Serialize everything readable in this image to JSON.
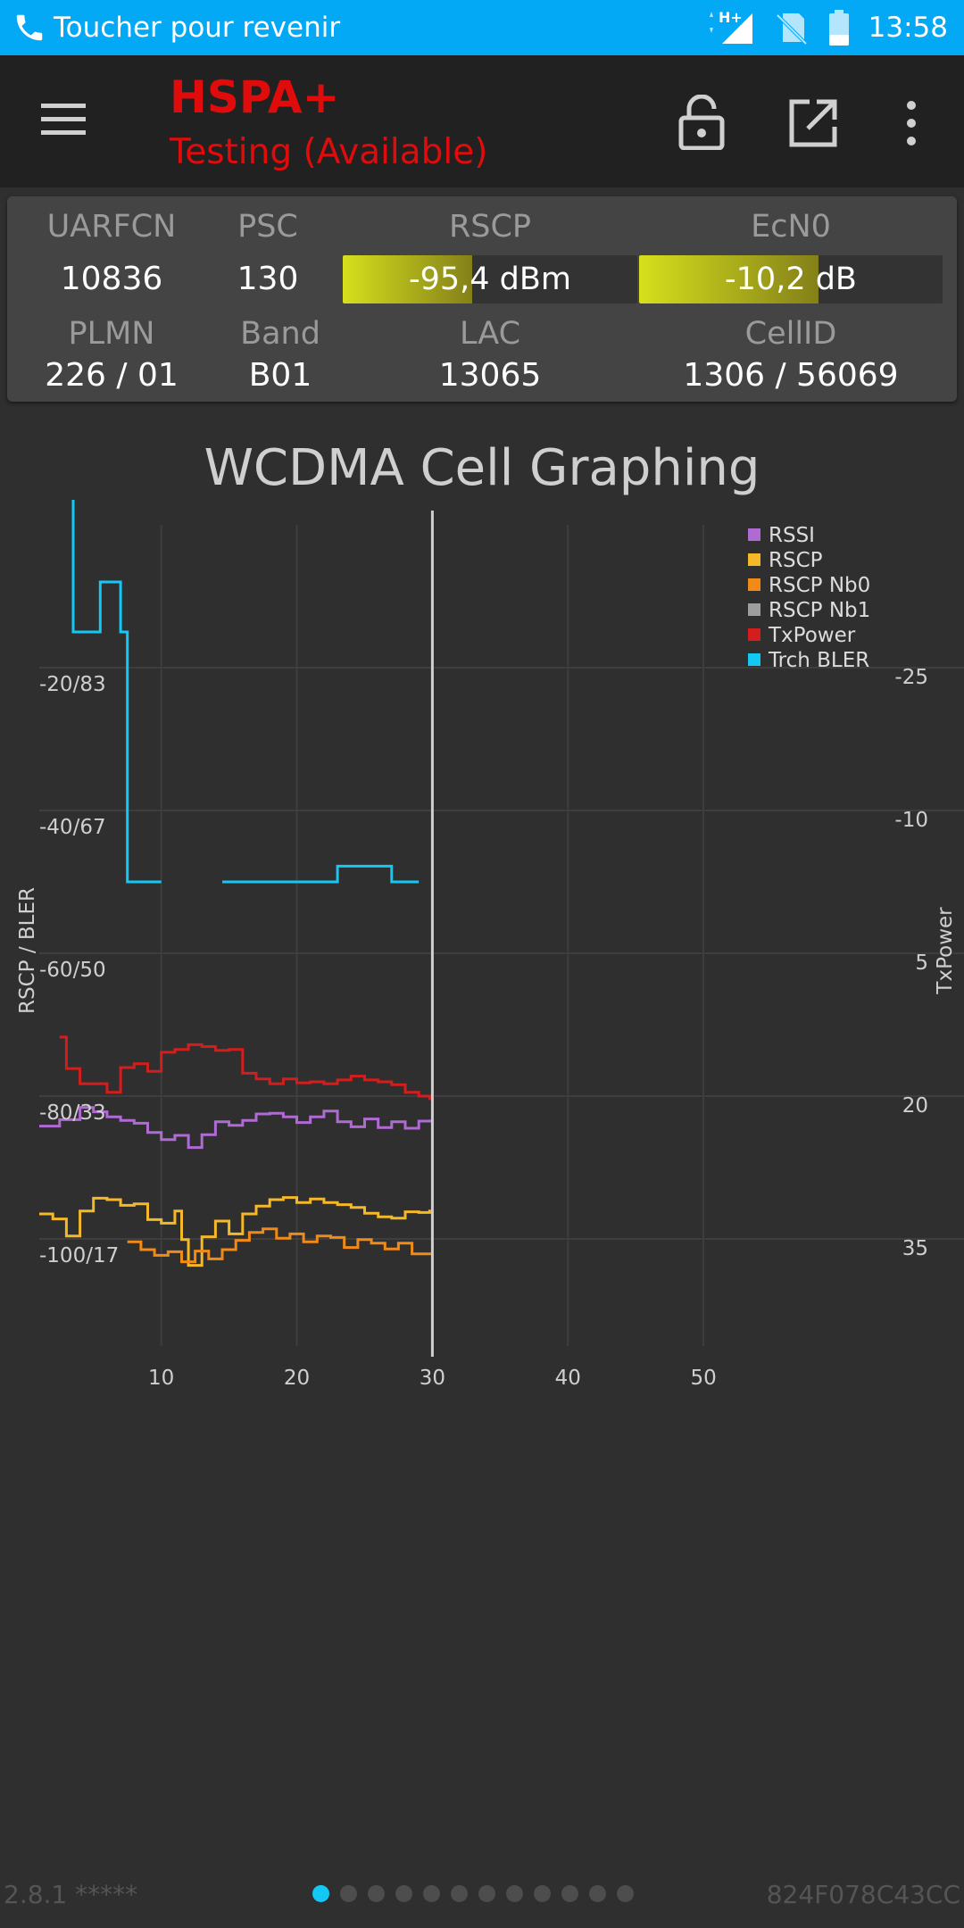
{
  "status_bar": {
    "back_text": "Toucher pour revenir",
    "network_indicator": "H+",
    "time": "13:58",
    "icons": [
      "phone-icon",
      "signal-icon",
      "no-sim-icon",
      "battery-icon"
    ]
  },
  "app_bar": {
    "technology": "HSPA+",
    "state": "Testing (Available)",
    "icons": [
      "menu-icon",
      "lock-open-icon",
      "open-external-icon",
      "more-vert-icon"
    ],
    "accent_color": "#e00b0b"
  },
  "cell_info": {
    "uarfcn_label": "UARFCN",
    "uarfcn_value": "10836",
    "psc_label": "PSC",
    "psc_value": "130",
    "rscp_label": "RSCP",
    "rscp_value": "-95,4 dBm",
    "rscp_level": 0.44,
    "ecn0_label": "EcN0",
    "ecn0_value": "-10,2 dB",
    "ecn0_level": 0.59,
    "plmn_label": "PLMN",
    "plmn_value": "226 / 01",
    "band_label": "Band",
    "band_value": "B01",
    "lac_label": "LAC",
    "lac_value": "13065",
    "cellid_label": "CellID",
    "cellid_value": "1306 / 56069"
  },
  "chart_data": {
    "type": "line",
    "title": "WCDMA Cell Graphing",
    "ylabel": "RSCP / BLER",
    "y2label": "TxPower",
    "x_ticks": [
      "10",
      "20",
      "30",
      "40",
      "50"
    ],
    "xlim": [
      1,
      60
    ],
    "y_ticks": [
      "-20/83",
      "-40/67",
      "-60/50",
      "-80/33",
      "-100/17"
    ],
    "y_range": [
      -120,
      0
    ],
    "y2_ticks": [
      "-25",
      "-10",
      "5",
      "20",
      "35"
    ],
    "cursor_x": 30,
    "grid": true,
    "legend_position": "top-right",
    "series": [
      {
        "name": "RSSI",
        "color": "#b06ad4",
        "step": true,
        "points": [
          [
            1,
            -84.2
          ],
          [
            2.5,
            -83.3
          ],
          [
            4,
            -81.6
          ],
          [
            5,
            -82.2
          ],
          [
            6,
            -82.9
          ],
          [
            7,
            -83.4
          ],
          [
            8,
            -83.8
          ],
          [
            9,
            -85.1
          ],
          [
            10,
            -86.1
          ],
          [
            11,
            -85.5
          ],
          [
            12,
            -87.2
          ],
          [
            13,
            -85.4
          ],
          [
            14,
            -83.6
          ],
          [
            15,
            -84.1
          ],
          [
            16,
            -83.4
          ],
          [
            17,
            -82.5
          ],
          [
            18,
            -82.4
          ],
          [
            19,
            -82.9
          ],
          [
            20,
            -83.7
          ],
          [
            21,
            -82.9
          ],
          [
            22,
            -82.1
          ],
          [
            23,
            -83.6
          ],
          [
            24,
            -84.3
          ],
          [
            25,
            -83.2
          ],
          [
            26,
            -84.4
          ],
          [
            27,
            -83.6
          ],
          [
            28,
            -84.5
          ],
          [
            29,
            -83.5
          ],
          [
            29.8,
            -83.3
          ]
        ]
      },
      {
        "name": "RSCP",
        "color": "#f5b829",
        "step": true,
        "points": [
          [
            1,
            -96.5
          ],
          [
            2,
            -97.2
          ],
          [
            3,
            -99.6
          ],
          [
            4,
            -96.1
          ],
          [
            5,
            -94.3
          ],
          [
            6,
            -94.5
          ],
          [
            7,
            -95.3
          ],
          [
            8,
            -95.1
          ],
          [
            9,
            -97.3
          ],
          [
            10,
            -97.8
          ],
          [
            11,
            -96.1
          ],
          [
            11.5,
            -100.1
          ],
          [
            12,
            -103.7
          ],
          [
            13,
            -99.7
          ],
          [
            14,
            -97.5
          ],
          [
            15,
            -99.3
          ],
          [
            16,
            -96.5
          ],
          [
            17,
            -95.4
          ],
          [
            18,
            -94.5
          ],
          [
            19,
            -94.2
          ],
          [
            20,
            -94.9
          ],
          [
            21,
            -94.4
          ],
          [
            22,
            -94.9
          ],
          [
            23,
            -95.2
          ],
          [
            24,
            -95.6
          ],
          [
            25,
            -96.4
          ],
          [
            26,
            -96.9
          ],
          [
            27,
            -97.1
          ],
          [
            28,
            -96.2
          ],
          [
            29,
            -96.3
          ],
          [
            29.8,
            -95.9
          ]
        ]
      },
      {
        "name": "RSCP Nb0",
        "color": "#f28a17",
        "step": true,
        "points": [
          [
            7.5,
            -100.4
          ],
          [
            8.5,
            -101.5
          ],
          [
            9.5,
            -102.3
          ],
          [
            10.5,
            -101.8
          ],
          [
            11.5,
            -103.2
          ],
          [
            12.5,
            -101.7
          ],
          [
            13.5,
            -102.8
          ],
          [
            14.5,
            -101.5
          ],
          [
            15.5,
            -100.2
          ],
          [
            16.5,
            -99.1
          ],
          [
            17.5,
            -98.6
          ],
          [
            18.5,
            -99.9
          ],
          [
            19.5,
            -99.3
          ],
          [
            20.5,
            -100.4
          ],
          [
            21.5,
            -99.6
          ],
          [
            22.5,
            -99.8
          ],
          [
            23.5,
            -101.2
          ],
          [
            24.5,
            -100.1
          ],
          [
            25.5,
            -100.6
          ],
          [
            26.5,
            -101.4
          ],
          [
            27.5,
            -100.6
          ],
          [
            28.5,
            -102.1
          ],
          [
            29.8,
            -101.9
          ]
        ]
      },
      {
        "name": "RSCP Nb1",
        "color": "#9e9e9e",
        "step": true,
        "points": []
      },
      {
        "name": "TxPower",
        "color": "#d41d1d",
        "step": true,
        "points": [
          [
            2.5,
            13.8
          ],
          [
            3,
            17.1
          ],
          [
            4,
            18.7
          ],
          [
            5,
            18.7
          ],
          [
            6,
            19.6
          ],
          [
            7,
            17.0
          ],
          [
            8,
            16.6
          ],
          [
            9,
            17.4
          ],
          [
            10,
            15.4
          ],
          [
            11,
            15.1
          ],
          [
            12,
            14.6
          ],
          [
            13,
            14.8
          ],
          [
            14,
            15.2
          ],
          [
            15,
            15.1
          ],
          [
            16,
            17.6
          ],
          [
            17,
            18.2
          ],
          [
            18,
            18.7
          ],
          [
            19,
            18.2
          ],
          [
            20,
            18.6
          ],
          [
            21,
            18.5
          ],
          [
            22,
            18.7
          ],
          [
            23,
            18.3
          ],
          [
            24,
            17.9
          ],
          [
            25,
            18.3
          ],
          [
            26,
            18.5
          ],
          [
            27,
            18.8
          ],
          [
            28,
            19.6
          ],
          [
            29,
            20.0
          ],
          [
            29.8,
            20.4
          ]
        ]
      },
      {
        "name": "Trch BLER",
        "color": "#14c8f5",
        "step": true,
        "points": [
          [
            1,
            17.0
          ],
          [
            1.5,
            17.0
          ],
          [
            1.5,
            33.3
          ],
          [
            3.5,
            33.3
          ],
          [
            3.5,
            -15.0
          ],
          [
            5.5,
            -15.0
          ],
          [
            5.5,
            -8.0
          ],
          [
            7,
            -8.0
          ],
          [
            7,
            -15.0
          ],
          [
            7.5,
            -15.0
          ],
          [
            7.5,
            -50.0
          ],
          [
            10,
            -50.0
          ],
          [
            10,
            null
          ],
          [
            14.5,
            null
          ],
          [
            14.5,
            -50.0
          ],
          [
            23,
            -50.0
          ],
          [
            23,
            -47.8
          ],
          [
            27,
            -47.8
          ],
          [
            27,
            -50.0
          ],
          [
            29,
            -50.0
          ]
        ]
      }
    ]
  },
  "footer": {
    "version": "2.8.1 *****",
    "device_id": "824F078C43CC",
    "page_count": 12,
    "active_page": 0
  }
}
